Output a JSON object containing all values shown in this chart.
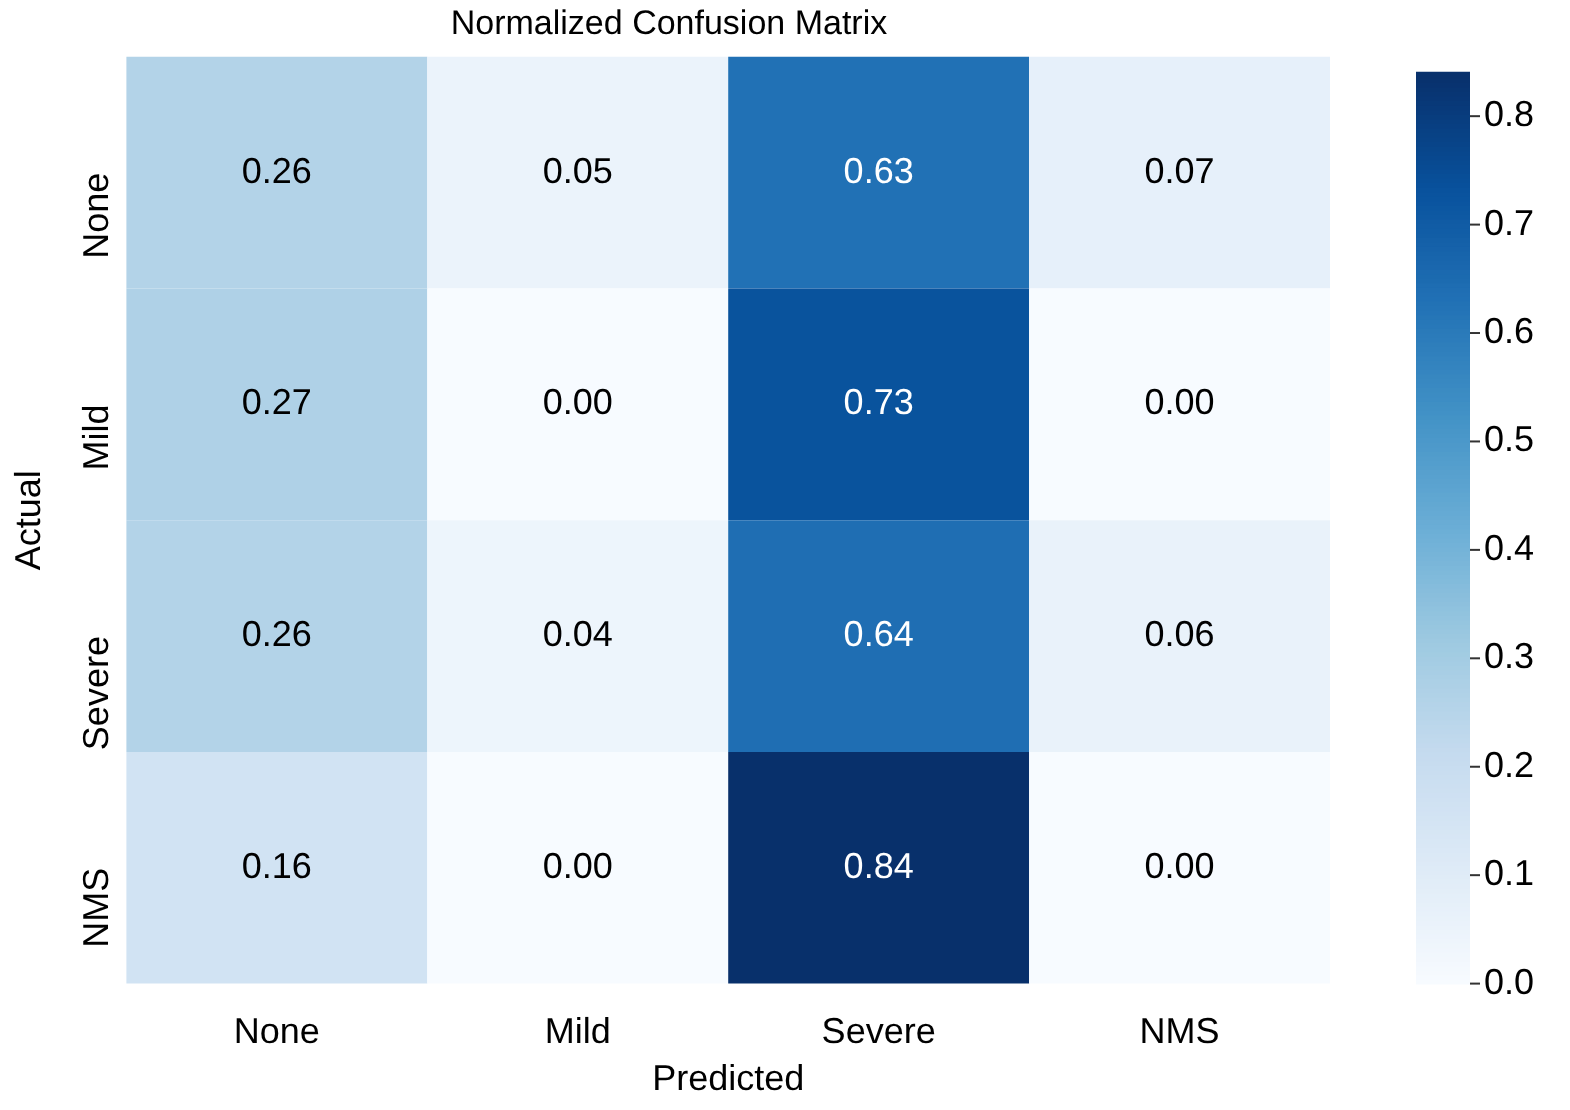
{
  "chart_data": {
    "type": "heatmap",
    "title": "Normalized Confusion Matrix",
    "xlabel": "Predicted",
    "ylabel": "Actual",
    "categories": [
      "None",
      "Mild",
      "Severe",
      "NMS"
    ],
    "y_categories": [
      "None",
      "Mild",
      "Severe",
      "NMS"
    ],
    "cells": [
      [
        0.26,
        0.05,
        0.63,
        0.07
      ],
      [
        0.27,
        0.0,
        0.73,
        0.0
      ],
      [
        0.26,
        0.04,
        0.64,
        0.06
      ],
      [
        0.16,
        0.0,
        0.84,
        0.0
      ]
    ],
    "cell_labels": [
      [
        "0.26",
        "0.05",
        "0.63",
        "0.07"
      ],
      [
        "0.27",
        "0.00",
        "0.73",
        "0.00"
      ],
      [
        "0.26",
        "0.04",
        "0.64",
        "0.06"
      ],
      [
        "0.16",
        "0.00",
        "0.84",
        "0.00"
      ]
    ],
    "clim": [
      0,
      0.84
    ],
    "cticks": [
      {
        "value": 0,
        "label": "0.0"
      },
      {
        "value": 0.1,
        "label": "0.1"
      },
      {
        "value": 0.2,
        "label": "0.2"
      },
      {
        "value": 0.3,
        "label": "0.3"
      },
      {
        "value": 0.4,
        "label": "0.4"
      },
      {
        "value": 0.5,
        "label": "0.5"
      },
      {
        "value": 0.6,
        "label": "0.6"
      },
      {
        "value": 0.7,
        "label": "0.7"
      },
      {
        "value": 0.8,
        "label": "0.8"
      }
    ]
  }
}
